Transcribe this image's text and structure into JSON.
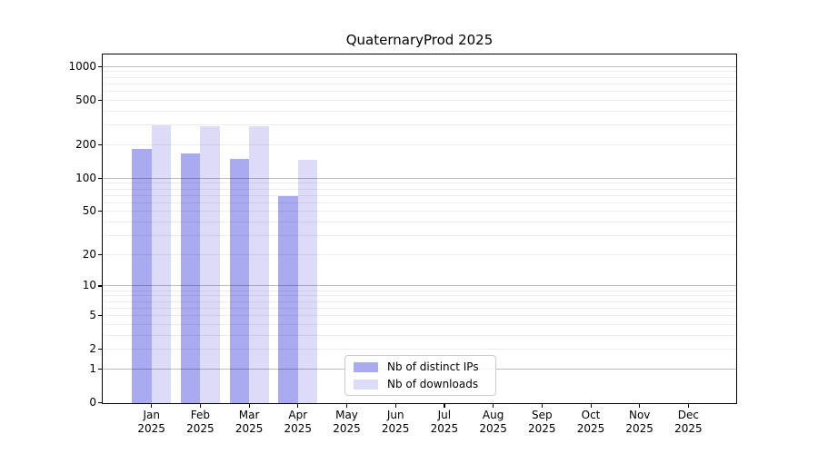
{
  "title": "QuaternaryProd 2025",
  "colors": {
    "distinct_ips_bar": "#aaaaf0",
    "downloads_bar": "#dcdcf8",
    "spine": "#000000",
    "legend_border": "#cccccc",
    "background": "#ffffff"
  },
  "legend": {
    "entries": [
      {
        "label": "Nb of distinct IPs",
        "color": "#aaaaf0"
      },
      {
        "label": "Nb of downloads",
        "color": "#dcdcf8"
      }
    ]
  },
  "chart_data": {
    "type": "bar",
    "title": "QuaternaryProd 2025",
    "categories": [
      "Jan 2025",
      "Feb 2025",
      "Mar 2025",
      "Apr 2025",
      "May 2025",
      "Jun 2025",
      "Jul 2025",
      "Aug 2025",
      "Sep 2025",
      "Oct 2025",
      "Nov 2025",
      "Dec 2025"
    ],
    "series": [
      {
        "name": "Nb of distinct IPs",
        "color": "#aaaaf0",
        "values": [
          182,
          166,
          150,
          69,
          0,
          0,
          0,
          0,
          0,
          0,
          0,
          0
        ]
      },
      {
        "name": "Nb of downloads",
        "color": "#dcdcf8",
        "values": [
          297,
          293,
          292,
          147,
          0,
          0,
          0,
          0,
          0,
          0,
          0,
          0
        ]
      }
    ],
    "xlabel": "",
    "ylabel": "",
    "yscale": "log10(value+1)",
    "yticks": [
      0,
      1,
      2,
      5,
      10,
      20,
      50,
      100,
      200,
      500,
      1000
    ],
    "major_grid_values": [
      1,
      10,
      100,
      1000
    ],
    "ylim": [
      0,
      1281
    ],
    "grid": "on",
    "legend_position": "lower-center"
  }
}
